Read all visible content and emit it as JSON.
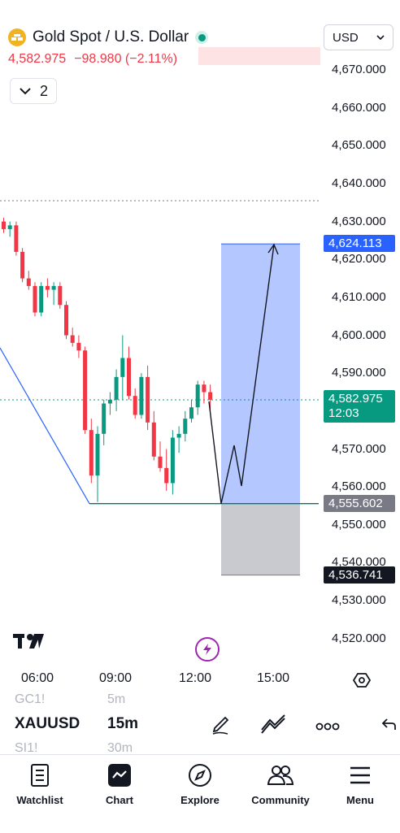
{
  "header": {
    "title": "Gold Spot / U.S. Dollar",
    "price": "4,582.975",
    "change": "−98.980 (−2.11%)",
    "indicator_count": "2",
    "currency": "USD",
    "logo_icon": "gold-bars-icon",
    "live_status_color": "#089981",
    "down_color": "#f23645"
  },
  "y_axis": {
    "ticks": [
      "4,670.000",
      "4,660.000",
      "4,650.000",
      "4,640.000",
      "4,630.000",
      "4,620.000",
      "4,610.000",
      "4,600.000",
      "4,590.000",
      "4,580.000",
      "4,570.000",
      "4,560.000",
      "4,550.000",
      "4,540.000",
      "4,530.000",
      "4,520.000"
    ],
    "target_label": "4,624.113",
    "last_price_label": "4,582.975",
    "countdown": "12:03",
    "entry_label": "4,555.602",
    "stop_label": "4,536.741"
  },
  "x_axis": {
    "ticks": [
      "06:00",
      "09:00",
      "12:00",
      "15:00"
    ]
  },
  "toolbar": {
    "symbol": "XAUUSD",
    "interval": "15m",
    "prev_symbol": "GC1!",
    "prev_interval": "5m",
    "next_symbol": "SI1!",
    "next_interval": "30m",
    "icons": [
      "pencil-icon",
      "chart-draw-icon",
      "more-icon",
      "back-icon"
    ]
  },
  "nav": [
    {
      "label": "Watchlist",
      "icon": "watchlist-icon"
    },
    {
      "label": "Chart",
      "icon": "chart-icon"
    },
    {
      "label": "Explore",
      "icon": "compass-icon"
    },
    {
      "label": "Community",
      "icon": "community-icon"
    },
    {
      "label": "Menu",
      "icon": "menu-icon"
    }
  ],
  "chart_data": {
    "type": "candlestick",
    "interval": "15m",
    "ylim": [
      4515,
      4675
    ],
    "last_price": 4582.975,
    "position": {
      "target": 4624.113,
      "entry": 4555.602,
      "stop": 4536.741
    },
    "candles": [
      [
        4630,
        4631,
        4627,
        4628
      ],
      [
        4628,
        4630,
        4626,
        4629
      ],
      [
        4629,
        4630,
        4621,
        4622
      ],
      [
        4622,
        4623,
        4614,
        4615
      ],
      [
        4615,
        4617,
        4612,
        4613
      ],
      [
        4613,
        4614,
        4605,
        4606
      ],
      [
        4606,
        4614,
        4605,
        4613
      ],
      [
        4613,
        4615,
        4610,
        4612
      ],
      [
        4612,
        4614,
        4608,
        4613
      ],
      [
        4613,
        4614,
        4607,
        4608
      ],
      [
        4608,
        4609,
        4599,
        4600
      ],
      [
        4600,
        4602,
        4597,
        4598
      ],
      [
        4598,
        4600,
        4594,
        4596
      ],
      [
        4596,
        4597,
        4574,
        4575
      ],
      [
        4575,
        4578,
        4561,
        4563
      ],
      [
        4563,
        4576,
        4556,
        4574
      ],
      [
        4574,
        4583,
        4571,
        4582
      ],
      [
        4582,
        4585,
        4579,
        4583
      ],
      [
        4583,
        4591,
        4580,
        4589
      ],
      [
        4589,
        4600,
        4583,
        4594
      ],
      [
        4594,
        4597,
        4583,
        4584
      ],
      [
        4584,
        4586,
        4578,
        4579
      ],
      [
        4579,
        4590,
        4578,
        4589
      ],
      [
        4589,
        4592,
        4575,
        4577
      ],
      [
        4577,
        4580,
        4567,
        4568
      ],
      [
        4568,
        4572,
        4564,
        4565
      ],
      [
        4565,
        4570,
        4559,
        4561
      ],
      [
        4561,
        4575,
        4558,
        4573
      ],
      [
        4573,
        4576,
        4569,
        4574
      ],
      [
        4574,
        4580,
        4572,
        4578
      ],
      [
        4578,
        4583,
        4577,
        4581
      ],
      [
        4581,
        4588,
        4579,
        4587
      ],
      [
        4587,
        4588,
        4582,
        4585
      ],
      [
        4585,
        4587,
        4580,
        4583
      ]
    ]
  }
}
